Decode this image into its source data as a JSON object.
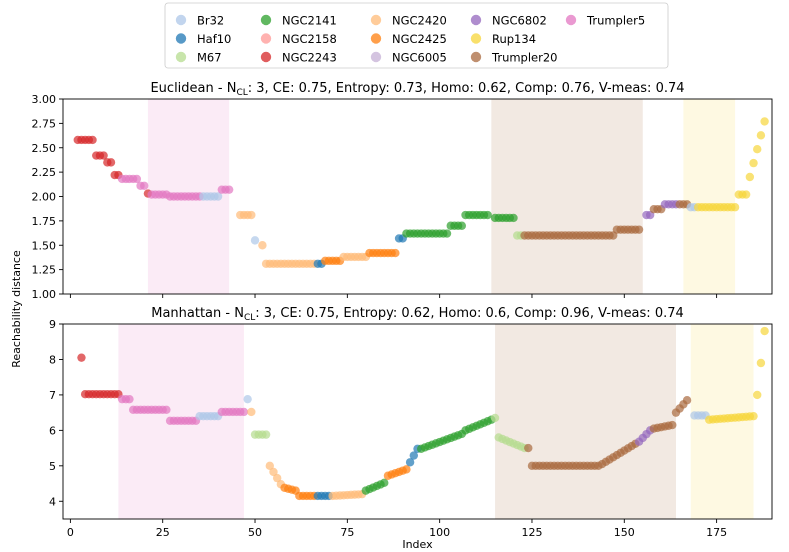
{
  "chart_data": [
    {
      "type": "scatter",
      "title_parts": [
        "Euclidean - N",
        "CL",
        ": 3, CE: 0.75, Entropy: 0.73, Homo: 0.62, Comp: 0.76, V-meas: 0.74"
      ],
      "ylabel": "Reachability distance",
      "xlabel": "",
      "xlim": [
        -2,
        190
      ],
      "ylim": [
        1.0,
        3.0
      ],
      "yticks": [
        "1.00",
        "1.25",
        "1.50",
        "1.75",
        "2.00",
        "2.25",
        "2.50",
        "2.75",
        "3.00"
      ],
      "ytick_values": [
        1.0,
        1.25,
        1.5,
        1.75,
        2.0,
        2.25,
        2.5,
        2.75,
        3.0
      ],
      "shaded_regions": [
        {
          "x0": 21,
          "x1": 43,
          "cluster": "Trumpler5"
        },
        {
          "x0": 114,
          "x1": 155,
          "cluster": "Trumpler20"
        },
        {
          "x0": 166,
          "x1": 180,
          "cluster": "Rup134"
        }
      ],
      "segments": [
        {
          "x0": 2,
          "x1": 6,
          "y0": 2.58,
          "y1": 2.58,
          "cluster": "NGC2243"
        },
        {
          "x0": 7,
          "x1": 9,
          "y0": 2.42,
          "y1": 2.42,
          "cluster": "NGC2243"
        },
        {
          "x0": 10,
          "x1": 11,
          "y0": 2.35,
          "y1": 2.35,
          "cluster": "NGC2243"
        },
        {
          "x0": 12,
          "x1": 13,
          "y0": 2.22,
          "y1": 2.22,
          "cluster": "NGC2243"
        },
        {
          "x0": 14,
          "x1": 18,
          "y0": 2.18,
          "y1": 2.18,
          "cluster": "Trumpler5"
        },
        {
          "x0": 19,
          "x1": 20,
          "y0": 2.11,
          "y1": 2.11,
          "cluster": "Trumpler5"
        },
        {
          "x0": 21,
          "x1": 21,
          "y0": 2.03,
          "y1": 2.03,
          "cluster": "NGC2243"
        },
        {
          "x0": 22,
          "x1": 26,
          "y0": 2.02,
          "y1": 2.02,
          "cluster": "Trumpler5"
        },
        {
          "x0": 27,
          "x1": 35,
          "y0": 2.0,
          "y1": 2.0,
          "cluster": "Trumpler5"
        },
        {
          "x0": 36,
          "x1": 40,
          "y0": 2.0,
          "y1": 2.0,
          "cluster": "Br32"
        },
        {
          "x0": 41,
          "x1": 43,
          "y0": 2.07,
          "y1": 2.07,
          "cluster": "Trumpler5"
        },
        {
          "x0": 46,
          "x1": 49,
          "y0": 1.81,
          "y1": 1.81,
          "cluster": "NGC2420"
        },
        {
          "x0": 50,
          "x1": 50,
          "y0": 1.55,
          "y1": 1.55,
          "cluster": "Br32"
        },
        {
          "x0": 52,
          "x1": 52,
          "y0": 1.5,
          "y1": 1.5,
          "cluster": "NGC2420"
        },
        {
          "x0": 53,
          "x1": 66,
          "y0": 1.31,
          "y1": 1.31,
          "cluster": "NGC2420"
        },
        {
          "x0": 67,
          "x1": 68,
          "y0": 1.31,
          "y1": 1.31,
          "cluster": "Haf10"
        },
        {
          "x0": 69,
          "x1": 73,
          "y0": 1.34,
          "y1": 1.34,
          "cluster": "NGC2425"
        },
        {
          "x0": 74,
          "x1": 80,
          "y0": 1.38,
          "y1": 1.38,
          "cluster": "NGC2420"
        },
        {
          "x0": 81,
          "x1": 88,
          "y0": 1.42,
          "y1": 1.42,
          "cluster": "NGC2425"
        },
        {
          "x0": 89,
          "x1": 90,
          "y0": 1.57,
          "y1": 1.57,
          "cluster": "Haf10"
        },
        {
          "x0": 91,
          "x1": 102,
          "y0": 1.62,
          "y1": 1.62,
          "cluster": "NGC2141"
        },
        {
          "x0": 103,
          "x1": 106,
          "y0": 1.7,
          "y1": 1.7,
          "cluster": "NGC2141"
        },
        {
          "x0": 107,
          "x1": 113,
          "y0": 1.81,
          "y1": 1.81,
          "cluster": "NGC2141"
        },
        {
          "x0": 115,
          "x1": 120,
          "y0": 1.78,
          "y1": 1.78,
          "cluster": "NGC2141"
        },
        {
          "x0": 121,
          "x1": 122,
          "y0": 1.6,
          "y1": 1.6,
          "cluster": "M67"
        },
        {
          "x0": 123,
          "x1": 147,
          "y0": 1.6,
          "y1": 1.6,
          "cluster": "Trumpler20"
        },
        {
          "x0": 148,
          "x1": 154,
          "y0": 1.66,
          "y1": 1.66,
          "cluster": "Trumpler20"
        },
        {
          "x0": 156,
          "x1": 157,
          "y0": 1.81,
          "y1": 1.81,
          "cluster": "NGC6802"
        },
        {
          "x0": 158,
          "x1": 160,
          "y0": 1.87,
          "y1": 1.87,
          "cluster": "Trumpler20"
        },
        {
          "x0": 161,
          "x1": 164,
          "y0": 1.92,
          "y1": 1.92,
          "cluster": "NGC6802"
        },
        {
          "x0": 165,
          "x1": 167,
          "y0": 1.92,
          "y1": 1.92,
          "cluster": "Trumpler20"
        },
        {
          "x0": 168,
          "x1": 169,
          "y0": 1.89,
          "y1": 1.89,
          "cluster": "Br32"
        },
        {
          "x0": 170,
          "x1": 180,
          "y0": 1.89,
          "y1": 1.89,
          "cluster": "Rup134"
        },
        {
          "x0": 181,
          "x1": 183,
          "y0": 2.02,
          "y1": 2.02,
          "cluster": "Rup134"
        },
        {
          "x0": 184,
          "x1": 188,
          "y0": 2.2,
          "y1": 2.77,
          "cluster": "Rup134"
        }
      ]
    },
    {
      "type": "scatter",
      "title_parts": [
        "Manhattan - N",
        "CL",
        ": 3, CE: 0.75, Entropy: 0.62, Homo: 0.6, Comp: 0.96, V-meas: 0.74"
      ],
      "ylabel": "",
      "xlabel": "Index",
      "xlim": [
        -2,
        190
      ],
      "ylim": [
        3.5,
        9.0
      ],
      "yticks": [
        "4",
        "5",
        "6",
        "7",
        "8",
        "9"
      ],
      "ytick_values": [
        4,
        5,
        6,
        7,
        8,
        9
      ],
      "xticks": [
        "0",
        "25",
        "50",
        "75",
        "100",
        "125",
        "150",
        "175"
      ],
      "xtick_values": [
        0,
        25,
        50,
        75,
        100,
        125,
        150,
        175
      ],
      "shaded_regions": [
        {
          "x0": 13,
          "x1": 47,
          "cluster": "Trumpler5"
        },
        {
          "x0": 115,
          "x1": 164,
          "cluster": "Trumpler20"
        },
        {
          "x0": 168,
          "x1": 185,
          "cluster": "Rup134"
        }
      ],
      "segments": [
        {
          "x0": 3,
          "x1": 3,
          "y0": 8.05,
          "y1": 8.05,
          "cluster": "NGC2243"
        },
        {
          "x0": 4,
          "x1": 13,
          "y0": 7.02,
          "y1": 7.02,
          "cluster": "NGC2243"
        },
        {
          "x0": 14,
          "x1": 16,
          "y0": 6.88,
          "y1": 6.88,
          "cluster": "Trumpler5"
        },
        {
          "x0": 17,
          "x1": 21,
          "y0": 6.58,
          "y1": 6.58,
          "cluster": "Trumpler5"
        },
        {
          "x0": 22,
          "x1": 26,
          "y0": 6.58,
          "y1": 6.58,
          "cluster": "Trumpler5"
        },
        {
          "x0": 27,
          "x1": 34,
          "y0": 6.27,
          "y1": 6.27,
          "cluster": "Trumpler5"
        },
        {
          "x0": 35,
          "x1": 40,
          "y0": 6.4,
          "y1": 6.4,
          "cluster": "Br32"
        },
        {
          "x0": 41,
          "x1": 47,
          "y0": 6.52,
          "y1": 6.52,
          "cluster": "Trumpler5"
        },
        {
          "x0": 48,
          "x1": 48,
          "y0": 6.88,
          "y1": 6.88,
          "cluster": "Br32"
        },
        {
          "x0": 49,
          "x1": 49,
          "y0": 6.52,
          "y1": 6.52,
          "cluster": "NGC2420"
        },
        {
          "x0": 50,
          "x1": 53,
          "y0": 5.88,
          "y1": 5.88,
          "cluster": "M67"
        },
        {
          "x0": 54,
          "x1": 57,
          "y0": 5.0,
          "y1": 4.48,
          "cluster": "NGC2420"
        },
        {
          "x0": 58,
          "x1": 61,
          "y0": 4.38,
          "y1": 4.3,
          "cluster": "NGC2425"
        },
        {
          "x0": 62,
          "x1": 66,
          "y0": 4.15,
          "y1": 4.15,
          "cluster": "NGC2425"
        },
        {
          "x0": 67,
          "x1": 70,
          "y0": 4.15,
          "y1": 4.15,
          "cluster": "Haf10"
        },
        {
          "x0": 71,
          "x1": 79,
          "y0": 4.15,
          "y1": 4.2,
          "cluster": "NGC2420"
        },
        {
          "x0": 80,
          "x1": 85,
          "y0": 4.3,
          "y1": 4.52,
          "cluster": "NGC2141"
        },
        {
          "x0": 86,
          "x1": 91,
          "y0": 4.72,
          "y1": 4.9,
          "cluster": "NGC2425"
        },
        {
          "x0": 92,
          "x1": 94,
          "y0": 5.1,
          "y1": 5.48,
          "cluster": "Haf10"
        },
        {
          "x0": 95,
          "x1": 106,
          "y0": 5.48,
          "y1": 5.9,
          "cluster": "NGC2141"
        },
        {
          "x0": 107,
          "x1": 114,
          "y0": 6.0,
          "y1": 6.3,
          "cluster": "NGC2141"
        },
        {
          "x0": 115,
          "x1": 115,
          "y0": 6.35,
          "y1": 6.35,
          "cluster": "M67"
        },
        {
          "x0": 116,
          "x1": 123,
          "y0": 5.8,
          "y1": 5.5,
          "cluster": "M67"
        },
        {
          "x0": 124,
          "x1": 124,
          "y0": 5.5,
          "y1": 5.5,
          "cluster": "Trumpler20"
        },
        {
          "x0": 125,
          "x1": 143,
          "y0": 5.0,
          "y1": 5.0,
          "cluster": "Trumpler20"
        },
        {
          "x0": 144,
          "x1": 153,
          "y0": 5.05,
          "y1": 5.62,
          "cluster": "Trumpler20"
        },
        {
          "x0": 154,
          "x1": 157,
          "y0": 5.68,
          "y1": 6.0,
          "cluster": "NGC6802"
        },
        {
          "x0": 158,
          "x1": 163,
          "y0": 6.05,
          "y1": 6.15,
          "cluster": "Trumpler20"
        },
        {
          "x0": 164,
          "x1": 167,
          "y0": 6.5,
          "y1": 6.85,
          "cluster": "Trumpler20"
        },
        {
          "x0": 169,
          "x1": 172,
          "y0": 6.42,
          "y1": 6.42,
          "cluster": "Br32"
        },
        {
          "x0": 173,
          "x1": 185,
          "y0": 6.3,
          "y1": 6.4,
          "cluster": "Rup134"
        },
        {
          "x0": 186,
          "x1": 188,
          "y0": 7.0,
          "y1": 8.8,
          "cluster": "Rup134"
        }
      ]
    }
  ],
  "legend": [
    {
      "label": "Br32",
      "color": "#aec7e8"
    },
    {
      "label": "Haf10",
      "color": "#1f77b4"
    },
    {
      "label": "M67",
      "color": "#b5dc8f"
    },
    {
      "label": "NGC2141",
      "color": "#2ca02c"
    },
    {
      "label": "NGC2158",
      "color": "#ff9896"
    },
    {
      "label": "NGC2243",
      "color": "#d62728"
    },
    {
      "label": "NGC2420",
      "color": "#ffbb78"
    },
    {
      "label": "NGC2425",
      "color": "#ff7f0e"
    },
    {
      "label": "NGC6005",
      "color": "#c5b0d5"
    },
    {
      "label": "NGC6802",
      "color": "#9467bd"
    },
    {
      "label": "Rup134",
      "color": "#f7d53a"
    },
    {
      "label": "Trumpler20",
      "color": "#a9693f"
    },
    {
      "label": "Trumpler5",
      "color": "#e377c2"
    }
  ]
}
